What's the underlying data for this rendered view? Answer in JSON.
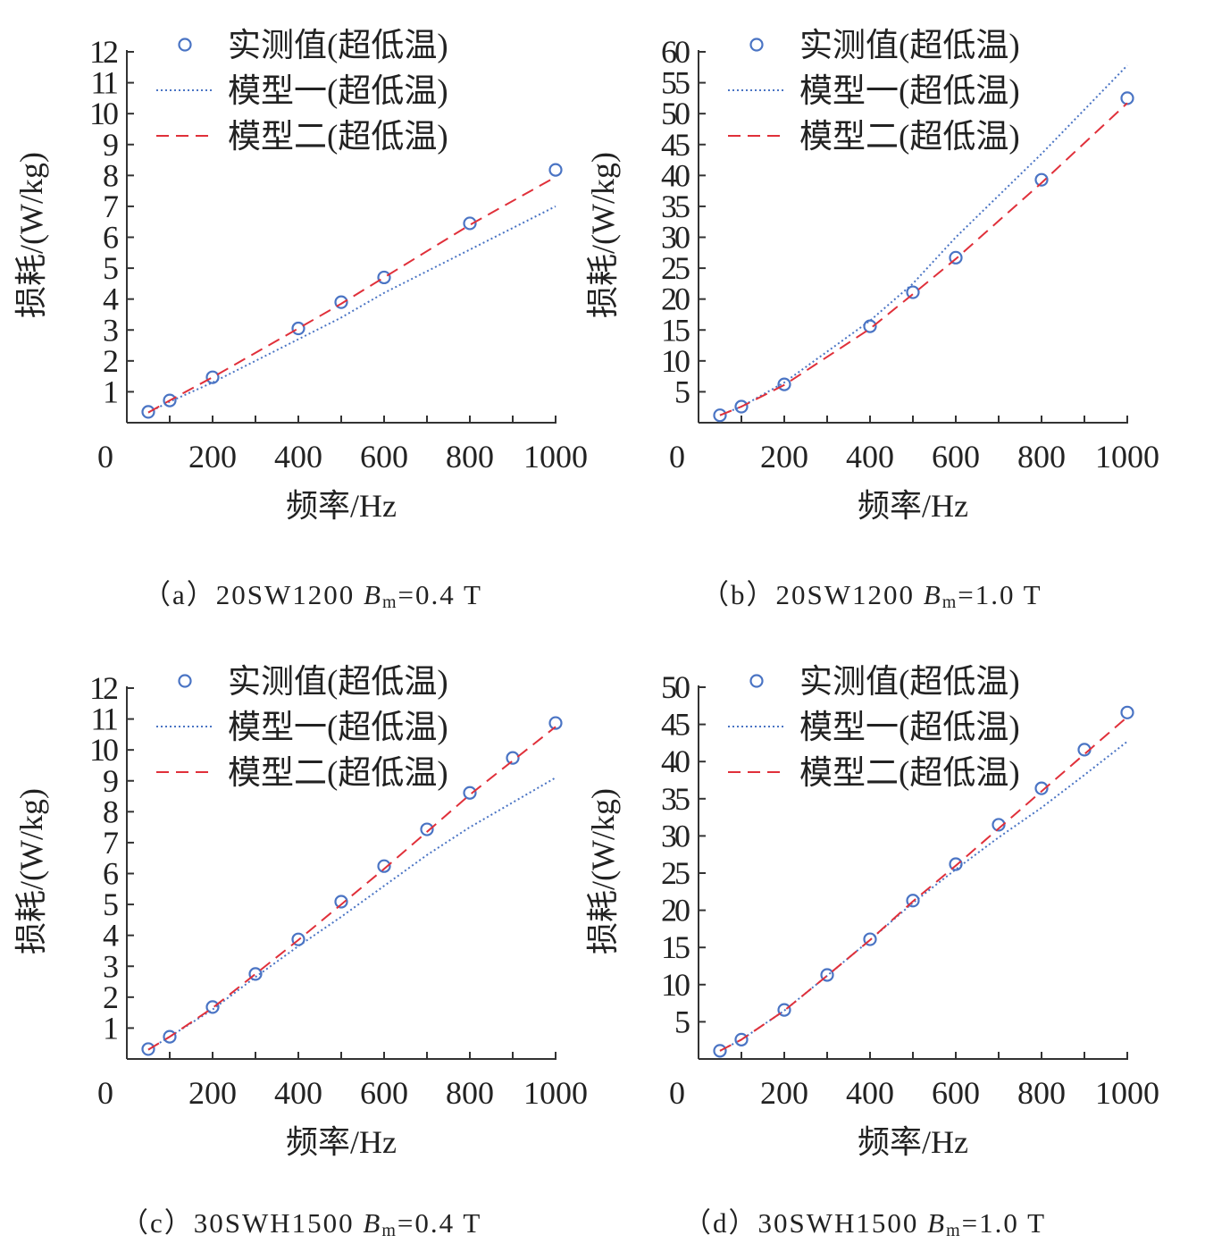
{
  "legend": {
    "measured": "实测值(超低温)",
    "model1": "模型一(超低温)",
    "model2": "模型二(超低温)"
  },
  "colors": {
    "measured": "#4a74c4",
    "model1": "#4a74c4",
    "model2": "#e0303a",
    "axis": "#333333"
  },
  "chart_data": [
    {
      "type": "line",
      "id": "a",
      "caption": {
        "prefix": "（a）20SW1200 ",
        "b": "B",
        "sub": "m",
        "suffix": "=0.4 T"
      },
      "xlabel": "频率/Hz",
      "ylabel": "损耗/(W/kg)",
      "xlim": [
        0,
        1000
      ],
      "ylim": [
        0,
        12
      ],
      "xticks": [
        0,
        200,
        400,
        600,
        800,
        1000
      ],
      "yticks": [
        1,
        2,
        3,
        4,
        5,
        6,
        7,
        8,
        9,
        10,
        11,
        12
      ],
      "legend_position": "top",
      "series": [
        {
          "name": "实测值(超低温)",
          "style": "markers",
          "x": [
            50,
            100,
            200,
            400,
            500,
            600,
            800,
            1000
          ],
          "y": [
            0.35,
            0.72,
            1.47,
            3.05,
            3.9,
            4.7,
            6.45,
            8.18
          ]
        },
        {
          "name": "模型一(超低温)",
          "style": "dotted",
          "x": [
            50,
            100,
            200,
            400,
            500,
            600,
            800,
            1000
          ],
          "y": [
            0.33,
            0.68,
            1.3,
            2.7,
            3.4,
            4.2,
            5.6,
            7.0
          ]
        },
        {
          "name": "模型二(超低温)",
          "style": "dashed",
          "x": [
            50,
            100,
            200,
            400,
            500,
            600,
            800,
            1000
          ],
          "y": [
            0.33,
            0.72,
            1.47,
            3.05,
            3.85,
            4.7,
            6.4,
            7.95
          ]
        }
      ]
    },
    {
      "type": "line",
      "id": "b",
      "caption": {
        "prefix": "（b）20SW1200 ",
        "b": "B",
        "sub": "m",
        "suffix": "=1.0 T"
      },
      "xlabel": "频率/Hz",
      "ylabel": "损耗/(W/kg)",
      "xlim": [
        0,
        1000
      ],
      "ylim": [
        0,
        60
      ],
      "xticks": [
        0,
        200,
        400,
        600,
        800,
        1000
      ],
      "yticks": [
        5,
        10,
        15,
        20,
        25,
        30,
        35,
        40,
        45,
        50,
        55,
        60
      ],
      "legend_position": "top",
      "series": [
        {
          "name": "实测值(超低温)",
          "style": "markers",
          "x": [
            50,
            100,
            200,
            400,
            500,
            600,
            800,
            1000
          ],
          "y": [
            1.2,
            2.6,
            6.2,
            15.6,
            21.1,
            26.7,
            39.3,
            52.5
          ]
        },
        {
          "name": "模型一(超低温)",
          "style": "dotted",
          "x": [
            50,
            100,
            200,
            400,
            500,
            600,
            800,
            1000
          ],
          "y": [
            1.2,
            2.6,
            6.5,
            16.5,
            22.5,
            30.0,
            43.5,
            57.8
          ]
        },
        {
          "name": "模型二(超低温)",
          "style": "dashed",
          "x": [
            50,
            100,
            200,
            400,
            500,
            600,
            800,
            1000
          ],
          "y": [
            1.2,
            2.6,
            6.1,
            15.2,
            20.8,
            26.5,
            38.8,
            51.7
          ]
        }
      ]
    },
    {
      "type": "line",
      "id": "c",
      "caption": {
        "prefix": "（c）30SWH1500 ",
        "b": "B",
        "sub": "m",
        "suffix": "=0.4 T"
      },
      "xlabel": "频率/Hz",
      "ylabel": "损耗/(W/kg)",
      "xlim": [
        0,
        1000
      ],
      "ylim": [
        0,
        12
      ],
      "xticks": [
        0,
        200,
        400,
        600,
        800,
        1000
      ],
      "yticks": [
        1,
        2,
        3,
        4,
        5,
        6,
        7,
        8,
        9,
        10,
        11,
        12
      ],
      "legend_position": "top",
      "series": [
        {
          "name": "实测值(超低温)",
          "style": "markers",
          "x": [
            50,
            100,
            200,
            300,
            400,
            500,
            600,
            700,
            800,
            900,
            1000
          ],
          "y": [
            0.32,
            0.72,
            1.68,
            2.75,
            3.87,
            5.09,
            6.24,
            7.43,
            8.61,
            9.74,
            10.87
          ]
        },
        {
          "name": "模型一(超低温)",
          "style": "dotted",
          "x": [
            50,
            100,
            200,
            300,
            400,
            500,
            600,
            700,
            800,
            900,
            1000
          ],
          "y": [
            0.3,
            0.72,
            1.6,
            2.65,
            3.65,
            4.6,
            5.6,
            6.6,
            7.5,
            8.3,
            9.1
          ]
        },
        {
          "name": "模型二(超低温)",
          "style": "dashed",
          "x": [
            50,
            100,
            200,
            300,
            400,
            500,
            600,
            700,
            800,
            900,
            1000
          ],
          "y": [
            0.3,
            0.72,
            1.65,
            2.75,
            3.85,
            5.0,
            6.15,
            7.35,
            8.55,
            9.65,
            10.75
          ]
        }
      ]
    },
    {
      "type": "line",
      "id": "d",
      "caption": {
        "prefix": "（d）30SWH1500 ",
        "b": "B",
        "sub": "m",
        "suffix": "=1.0 T"
      },
      "xlabel": "频率/Hz",
      "ylabel": "损耗/(W/kg)",
      "xlim": [
        0,
        1000
      ],
      "ylim": [
        0,
        50
      ],
      "xticks": [
        0,
        200,
        400,
        600,
        800,
        1000
      ],
      "yticks": [
        5,
        10,
        15,
        20,
        25,
        30,
        35,
        40,
        45,
        50
      ],
      "legend_position": "top",
      "series": [
        {
          "name": "实测值(超低温)",
          "style": "markers",
          "x": [
            50,
            100,
            200,
            300,
            400,
            500,
            600,
            700,
            800,
            900,
            1000
          ],
          "y": [
            1.1,
            2.6,
            6.6,
            11.3,
            16.1,
            21.3,
            26.2,
            31.5,
            36.4,
            41.6,
            46.6
          ]
        },
        {
          "name": "模型一(超低温)",
          "style": "dotted",
          "x": [
            50,
            100,
            200,
            300,
            400,
            500,
            600,
            700,
            800,
            900,
            1000
          ],
          "y": [
            1.1,
            2.6,
            6.5,
            11.2,
            16.0,
            21.0,
            25.5,
            29.8,
            33.8,
            38.2,
            42.7
          ]
        },
        {
          "name": "模型二(超低温)",
          "style": "dashed",
          "x": [
            50,
            100,
            200,
            300,
            400,
            500,
            600,
            700,
            800,
            900,
            1000
          ],
          "y": [
            1.1,
            2.6,
            6.5,
            11.2,
            16.0,
            21.2,
            26.0,
            31.0,
            36.0,
            41.0,
            46.0
          ]
        }
      ]
    }
  ]
}
